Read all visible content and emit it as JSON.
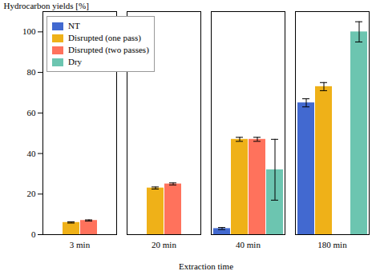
{
  "chart_data": {
    "type": "bar",
    "xlabel": "Extraction time",
    "ylabel": "Hydrocarbon yields [%]",
    "categories": [
      "3 min",
      "20 min",
      "40 min",
      "180 min"
    ],
    "series": [
      {
        "name": "NT",
        "values": [
          null,
          null,
          3,
          65
        ],
        "errors": [
          null,
          null,
          0.5,
          2
        ]
      },
      {
        "name": "Disrupted (one pass)",
        "values": [
          6,
          23,
          47,
          73
        ],
        "errors": [
          0.3,
          0.5,
          1.0,
          2
        ]
      },
      {
        "name": "Disrupted (two passes)",
        "values": [
          7,
          25,
          47,
          null
        ],
        "errors": [
          0.3,
          0.5,
          1.0,
          null
        ]
      },
      {
        "name": "Dry",
        "values": [
          null,
          null,
          32,
          100
        ],
        "errors": [
          null,
          null,
          15,
          5
        ]
      }
    ],
    "ylim": [
      0,
      110
    ],
    "yticks": [
      0,
      20,
      40,
      60,
      80,
      100
    ],
    "grid": false,
    "legend": "upper left"
  }
}
